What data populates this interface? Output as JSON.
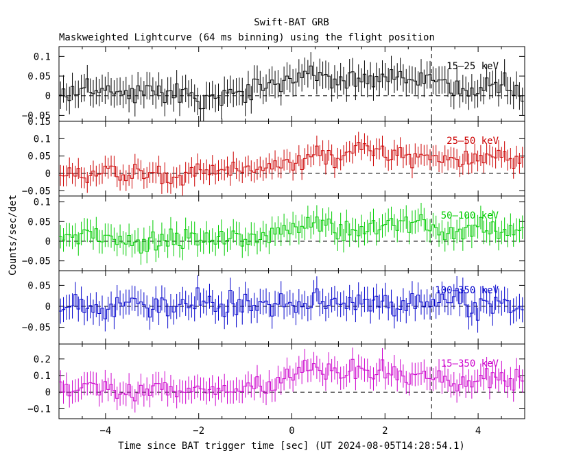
{
  "title": "Swift-BAT GRB",
  "subtitle": "Maskweighted Lightcurve (64 ms binning) using the flight position",
  "xlabel": "Time since BAT trigger time [sec] (UT 2024-08-05T14:28:54.1)",
  "ylabel": "Counts/sec/det",
  "chart_data": {
    "type": "line",
    "title": "Swift-BAT GRB",
    "subtitle": "Maskweighted Lightcurve (64 ms binning) using the flight position",
    "xlabel": "Time since BAT trigger time [sec] (UT 2024-08-05T14:28:54.1)",
    "ylabel": "Counts/sec/det",
    "xlim": [
      -5.0,
      5.0
    ],
    "x_ticks": [
      -4,
      -2,
      0,
      2,
      4
    ],
    "x_tick_labels": [
      "−4",
      "−2",
      "0",
      "2",
      "4"
    ],
    "bin_width_s": 0.064,
    "marker_line_x": 3.0,
    "grid": false,
    "panels": [
      {
        "name": "15–25 keV",
        "color": "#000000",
        "ylim": [
          -0.065,
          0.125
        ],
        "yticks": [
          -0.05,
          0,
          0.05,
          0.1
        ],
        "ytick_labels": [
          "−0.05",
          "0",
          "0.05",
          "0.1"
        ],
        "err": 0.035,
        "x": [
          -4.9,
          -4.5,
          -4.0,
          -3.5,
          -3.0,
          -2.5,
          -2.0,
          -1.5,
          -1.0,
          -0.5,
          0.0,
          0.5,
          1.0,
          1.5,
          2.0,
          2.5,
          3.0,
          3.5,
          4.0,
          4.5,
          4.9
        ],
        "y": [
          0.0,
          0.02,
          0.01,
          0.0,
          0.02,
          0.01,
          0.0,
          0.0,
          0.01,
          0.02,
          0.05,
          0.05,
          0.04,
          0.05,
          0.04,
          0.03,
          0.04,
          0.02,
          0.02,
          0.03,
          0.0
        ]
      },
      {
        "name": "25–50 keV",
        "color": "#cc0000",
        "ylim": [
          -0.065,
          0.15
        ],
        "yticks": [
          -0.05,
          0,
          0.05,
          0.1,
          0.15
        ],
        "ytick_labels": [
          "−0.05",
          "0",
          "0.05",
          "0.1",
          "0.15"
        ],
        "err": 0.03,
        "x": [
          -4.9,
          -4.5,
          -4.0,
          -3.5,
          -3.0,
          -2.5,
          -2.0,
          -1.5,
          -1.0,
          -0.5,
          0.0,
          0.5,
          1.0,
          1.5,
          2.0,
          2.5,
          3.0,
          3.5,
          4.0,
          4.5,
          4.9
        ],
        "y": [
          0.0,
          -0.01,
          0.0,
          -0.01,
          0.0,
          -0.01,
          0.02,
          0.0,
          0.01,
          0.02,
          0.03,
          0.05,
          0.04,
          0.08,
          0.05,
          0.05,
          0.04,
          0.03,
          0.04,
          0.05,
          0.03
        ]
      },
      {
        "name": "50–100 keV",
        "color": "#00cc00",
        "ylim": [
          -0.075,
          0.115
        ],
        "yticks": [
          -0.05,
          0,
          0.05,
          0.1
        ],
        "ytick_labels": [
          "−0.05",
          "0",
          "0.05",
          "0.1"
        ],
        "err": 0.03,
        "x": [
          -4.9,
          -4.5,
          -4.0,
          -3.5,
          -3.0,
          -2.5,
          -2.0,
          -1.5,
          -1.0,
          -0.5,
          0.0,
          0.5,
          1.0,
          1.5,
          2.0,
          2.5,
          3.0,
          3.5,
          4.0,
          4.5,
          4.9
        ],
        "y": [
          0.0,
          0.02,
          0.01,
          0.0,
          0.0,
          0.01,
          0.0,
          0.01,
          0.0,
          0.02,
          0.04,
          0.05,
          0.03,
          0.03,
          0.04,
          0.05,
          0.03,
          0.02,
          0.03,
          0.02,
          0.04
        ]
      },
      {
        "name": "100–350 keV",
        "color": "#0000cc",
        "ylim": [
          -0.09,
          0.085
        ],
        "yticks": [
          -0.05,
          0,
          0.05
        ],
        "ytick_labels": [
          "−0.05",
          "0",
          "0.05"
        ],
        "err": 0.03,
        "x": [
          -4.9,
          -4.5,
          -4.0,
          -3.5,
          -3.0,
          -2.5,
          -2.0,
          -1.5,
          -1.0,
          -0.5,
          0.0,
          0.5,
          1.0,
          1.5,
          2.0,
          2.5,
          3.0,
          3.5,
          4.0,
          4.5,
          4.9
        ],
        "y": [
          0.0,
          0.01,
          0.0,
          0.01,
          0.0,
          0.0,
          0.01,
          0.0,
          0.01,
          0.0,
          0.01,
          0.01,
          0.0,
          0.02,
          0.0,
          0.0,
          0.01,
          0.01,
          0.0,
          0.01,
          0.0
        ]
      },
      {
        "name": "15–350 keV",
        "color": "#cc00cc",
        "ylim": [
          -0.16,
          0.29
        ],
        "yticks": [
          -0.1,
          0,
          0.1,
          0.2
        ],
        "ytick_labels": [
          "−0.1",
          "0",
          "0.1",
          "0.2"
        ],
        "err": 0.07,
        "x": [
          -4.9,
          -4.5,
          -4.0,
          -3.5,
          -3.0,
          -2.5,
          -2.0,
          -1.5,
          -1.0,
          -0.5,
          0.0,
          0.5,
          1.0,
          1.5,
          2.0,
          2.5,
          3.0,
          3.5,
          4.0,
          4.5,
          4.9
        ],
        "y": [
          0.0,
          0.03,
          0.02,
          0.0,
          0.03,
          0.02,
          0.02,
          0.01,
          0.03,
          0.05,
          0.12,
          0.15,
          0.1,
          0.14,
          0.12,
          0.11,
          0.09,
          0.06,
          0.07,
          0.09,
          0.08
        ]
      }
    ]
  }
}
